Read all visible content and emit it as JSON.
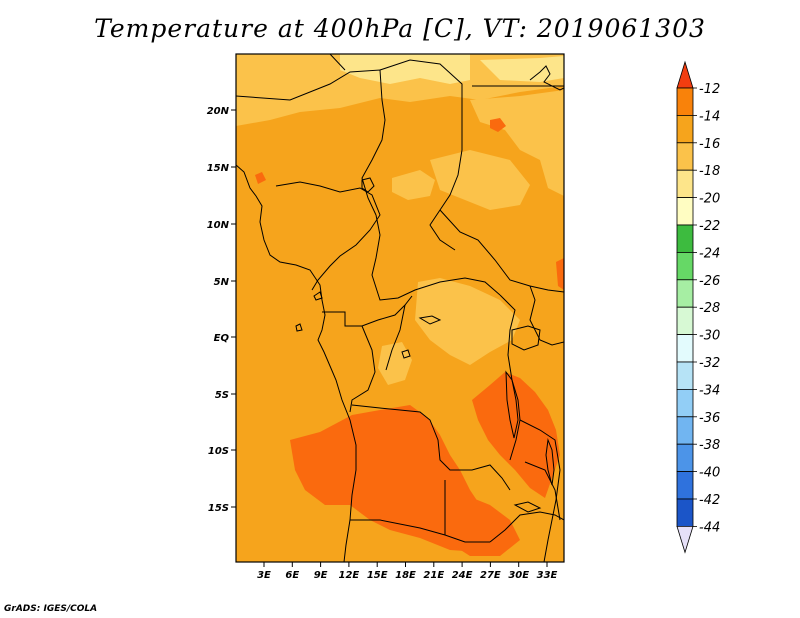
{
  "title": "Temperature at 400hPa [C], VT: 2019061303",
  "credit": "GrADS: IGES/COLA",
  "map": {
    "lat_labels": [
      "20N",
      "15N",
      "10N",
      "5N",
      "EQ",
      "5S",
      "10S",
      "15S"
    ],
    "lon_labels": [
      "3E",
      "6E",
      "9E",
      "12E",
      "15E",
      "18E",
      "21E",
      "24E",
      "27E",
      "30E",
      "33E"
    ],
    "background_color": "#f6a41c",
    "field_colors": {
      "warm_band": "#fa6a0e",
      "cool_band": "#fbc24a",
      "coolest_band": "#fde58a"
    }
  },
  "colorbar": {
    "levels": [
      "-12",
      "-14",
      "-16",
      "-18",
      "-20",
      "-22",
      "-24",
      "-26",
      "-28",
      "-30",
      "-32",
      "-34",
      "-36",
      "-38",
      "-40",
      "-42",
      "-44"
    ],
    "colors": [
      "#f64a12",
      "#f9820a",
      "#f6a41c",
      "#fbc24a",
      "#fde58a",
      "#fffdc2",
      "#3dbb3f",
      "#66d866",
      "#a6eea3",
      "#d7f9d4",
      "#e3fbfd",
      "#b6e3f6",
      "#92cef6",
      "#71b5f1",
      "#4c94e8",
      "#2f72dd",
      "#1b55c8",
      "#0f3a9f",
      "#0b1a6b"
    ],
    "top_arrow_color": "#f23d10",
    "bottom_arrow_color": "#e6e0f8"
  }
}
